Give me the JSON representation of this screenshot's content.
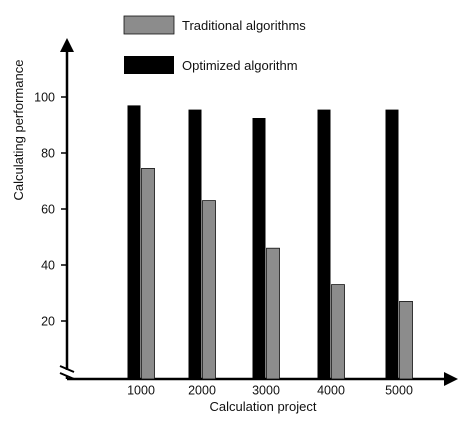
{
  "chart_data": {
    "type": "bar",
    "xlabel": "Calculation project",
    "ylabel": "Calculating performance",
    "categories": [
      "1000",
      "2000",
      "3000",
      "4000",
      "5000"
    ],
    "yticks": [
      20,
      40,
      60,
      80,
      100
    ],
    "ylim": [
      0,
      100
    ],
    "axis_break": true,
    "legend_position": "top",
    "series": [
      {
        "name": "Optimized algorithm",
        "color": "#000000",
        "values": [
          97,
          95.5,
          92.5,
          95.5,
          95.5
        ]
      },
      {
        "name": "Traditional algorithms",
        "color": "#8c8c8c",
        "values": [
          74.5,
          63,
          46,
          33,
          27
        ]
      }
    ],
    "legend_order": [
      "Traditional algorithms",
      "Optimized algorithm"
    ]
  }
}
